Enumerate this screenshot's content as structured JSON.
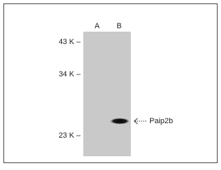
{
  "lanes": [
    "A",
    "B"
  ],
  "markers": [
    "43 K –",
    "34 K –",
    "23 K –"
  ],
  "band_label": "Paip2b"
}
